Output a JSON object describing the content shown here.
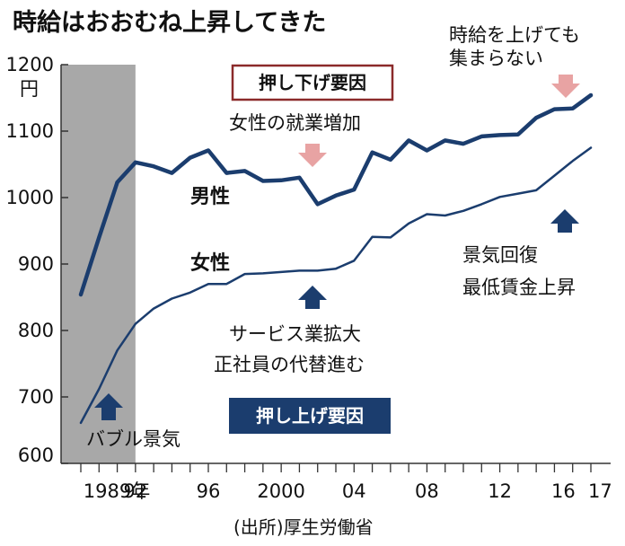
{
  "chart_data": {
    "type": "line",
    "title": "時給はおおむね上昇してきた",
    "ylabel": "円",
    "ylim": [
      600,
      1200
    ],
    "yticks": [
      600,
      700,
      800,
      900,
      1000,
      1100,
      1200
    ],
    "xlim": [
      1989,
      2017
    ],
    "xticks": [
      {
        "x": 1989,
        "label": "1989年"
      },
      {
        "x": 1992,
        "label": "92"
      },
      {
        "x": 1996,
        "label": "96"
      },
      {
        "x": 2000,
        "label": "2000"
      },
      {
        "x": 2004,
        "label": "04"
      },
      {
        "x": 2008,
        "label": "08"
      },
      {
        "x": 2012,
        "label": "12"
      },
      {
        "x": 2016,
        "label": "16"
      },
      {
        "x": 2017,
        "label": "17"
      }
    ],
    "shaded_period": {
      "from": 1989,
      "to": 1992,
      "label": "バブル景気"
    },
    "x": [
      1989,
      1990,
      1991,
      1992,
      1993,
      1994,
      1995,
      1996,
      1997,
      1998,
      1999,
      2000,
      2001,
      2002,
      2003,
      2004,
      2005,
      2006,
      2007,
      2008,
      2009,
      2010,
      2011,
      2012,
      2013,
      2014,
      2015,
      2016,
      2017
    ],
    "series": [
      {
        "name": "男性",
        "color": "#1b3d6e",
        "values": [
          854,
          940,
          1023,
          1053,
          1047,
          1037,
          1060,
          1071,
          1037,
          1040,
          1025,
          1026,
          1030,
          990,
          1003,
          1012,
          1068,
          1057,
          1086,
          1071,
          1086,
          1081,
          1092,
          1094,
          1095,
          1120,
          1133,
          1134,
          1154
        ]
      },
      {
        "name": "女性",
        "color": "#1b3d6e",
        "values": [
          661,
          712,
          770,
          810,
          833,
          848,
          857,
          870,
          870,
          885,
          886,
          888,
          890,
          890,
          893,
          905,
          941,
          940,
          961,
          975,
          973,
          980,
          990,
          1001,
          1006,
          1011,
          1033,
          1055,
          1075
        ]
      }
    ],
    "annotations": {
      "push_down_label": "押し下げ要因",
      "push_up_label": "押し上げ要因",
      "women_work": "女性の就業増加",
      "wage_hike_line1": "時給を上げても",
      "wage_hike_line2": "集まらない",
      "service_line1": "サービス業拡大",
      "service_line2": "正社員の代替進む",
      "recovery_line1": "景気回復",
      "recovery_line2": "最低賃金上昇"
    },
    "source": "(出所)厚生労働省",
    "grid": false
  },
  "colors": {
    "line": "#1b3d6e",
    "up_arrow": "#1b3d6e",
    "down_arrow": "#e8a3a3",
    "down_box_border": "#8b2a2a",
    "up_box_fill": "#1b3d6e",
    "shade": "#a8a8a8"
  }
}
